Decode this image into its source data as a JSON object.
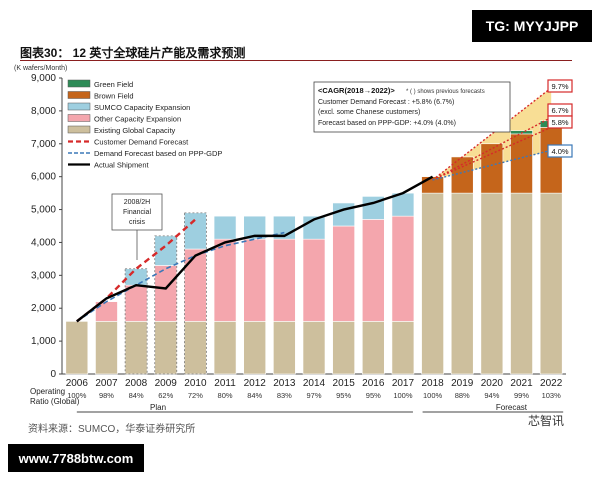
{
  "title": "图表30： 12 英寸全球硅片产能及需求预测",
  "source": "资料来源：SUMCO，华泰证券研究所",
  "watermarks": {
    "top": "TG: MYYJJPP",
    "bottom": "www.7788btw.com"
  },
  "brand": "芯智讯",
  "colors": {
    "green_field": "#2e8b57",
    "brown_field": "#c5651b",
    "sumco_capacity_expansion": "#9ecfe0",
    "other_capacity_expansion": "#f4a6ad",
    "existing_global_capacity": "#cdbf9d",
    "customer_forecast": "#d62a2a",
    "ppp_forecast": "#3b78b8",
    "actual": "#000000",
    "forecast_shade": "#f3c23e"
  },
  "cagr_box": {
    "title": "<CAGR(2018→2022)>",
    "note": "* ( ) shows previous forecasts",
    "line1": "Customer Demand Forecast : +5.8% (6.7%)",
    "line2": "(excl. some Chanese customers)",
    "line3": "Forecast based on PPP-GDP: +4.0% (4.0%)"
  },
  "crisis_label": [
    "2008/2H",
    "Financial",
    "crisis"
  ],
  "callouts": [
    "9.7%",
    "6.7%",
    "5.8%",
    "4.0%"
  ],
  "operating_label": [
    "Operating",
    "Ratio (Global)"
  ],
  "operating_ratio": [
    "100%",
    "98%",
    "84%",
    "62%",
    "72%",
    "80%",
    "84%",
    "83%",
    "97%",
    "95%",
    "95%",
    "100%",
    "100%",
    "88%",
    "94%",
    "99%",
    "103%"
  ],
  "period_labels": {
    "plan": "Plan",
    "forecast": "Forecast"
  },
  "chart_data": {
    "type": "bar",
    "ylabel": "(K wafers/Month)",
    "ylim": [
      0,
      9000
    ],
    "yticks": [
      "0",
      "1,000",
      "2,000",
      "3,000",
      "4,000",
      "5,000",
      "6,000",
      "7,000",
      "8,000",
      "9,000"
    ],
    "categories": [
      "2006",
      "2007",
      "2008",
      "2009",
      "2010",
      "2011",
      "2012",
      "2013",
      "2014",
      "2015",
      "2016",
      "2017",
      "2018",
      "2019",
      "2020",
      "2021",
      "2022"
    ],
    "stacked_series": [
      {
        "name": "Existing Global Capacity",
        "values": [
          1600,
          1600,
          1600,
          1600,
          1600,
          1600,
          1600,
          1600,
          1600,
          1600,
          1600,
          1600,
          5500,
          5500,
          5500,
          5500,
          5500
        ]
      },
      {
        "name": "Other Capacity Expansion",
        "values": [
          0,
          600,
          1100,
          1700,
          2200,
          2500,
          2500,
          2500,
          2500,
          2900,
          3100,
          3200,
          0,
          0,
          0,
          0,
          0
        ]
      },
      {
        "name": "SUMCO Capacity Expansion",
        "values": [
          0,
          0,
          500,
          900,
          1100,
          700,
          700,
          700,
          700,
          700,
          700,
          700,
          0,
          0,
          0,
          0,
          0
        ]
      },
      {
        "name": "Brown Field",
        "values": [
          0,
          0,
          0,
          0,
          0,
          0,
          0,
          0,
          0,
          0,
          0,
          0,
          500,
          1100,
          1500,
          1800,
          2000
        ]
      },
      {
        "name": "Green Field",
        "values": [
          0,
          0,
          0,
          0,
          0,
          0,
          0,
          0,
          0,
          0,
          0,
          0,
          0,
          0,
          0,
          100,
          200
        ]
      }
    ],
    "line_series": [
      {
        "name": "Customer Demand Forecast",
        "style": "dashed-red",
        "x": [
          "2006",
          "2007",
          "2008",
          "2009",
          "2010"
        ],
        "values": [
          1600,
          2300,
          3200,
          3900,
          4700
        ]
      },
      {
        "name": "Demand Forecast based on PPP-GDP",
        "style": "dashed-blue",
        "x": [
          "2006",
          "2007",
          "2008",
          "2009",
          "2010",
          "2011",
          "2012",
          "2013"
        ],
        "values": [
          1600,
          2200,
          2700,
          3200,
          3600,
          3900,
          4100,
          4300
        ]
      },
      {
        "name": "Actual Shipment",
        "style": "solid-black",
        "x": [
          "2006",
          "2007",
          "2008",
          "2009",
          "2010",
          "2011",
          "2012",
          "2013",
          "2014",
          "2015",
          "2016",
          "2017",
          "2018"
        ],
        "values": [
          1600,
          2300,
          2700,
          2600,
          3600,
          4000,
          4200,
          4200,
          4700,
          5000,
          5200,
          5500,
          6000
        ]
      }
    ],
    "forecast_lines": [
      {
        "name": "9.7%",
        "x": [
          "2018",
          "2022"
        ],
        "values": [
          5900,
          8700
        ]
      },
      {
        "name": "6.7%",
        "x": [
          "2018",
          "2022"
        ],
        "values": [
          5900,
          7800
        ]
      },
      {
        "name": "5.8%",
        "x": [
          "2018",
          "2022"
        ],
        "values": [
          5900,
          7500
        ]
      },
      {
        "name": "4.0%",
        "x": [
          "2018",
          "2022"
        ],
        "values": [
          5900,
          6800
        ]
      }
    ],
    "legend": [
      "Green Field",
      "Brown Field",
      "SUMCO Capacity Expansion",
      "Other Capacity Expansion",
      "Existing Global Capacity",
      "Customer Demand Forecast",
      "Demand Forecast based on PPP-GDP",
      "Actual Shipment"
    ],
    "legend_position": "top-left",
    "grid": false
  }
}
